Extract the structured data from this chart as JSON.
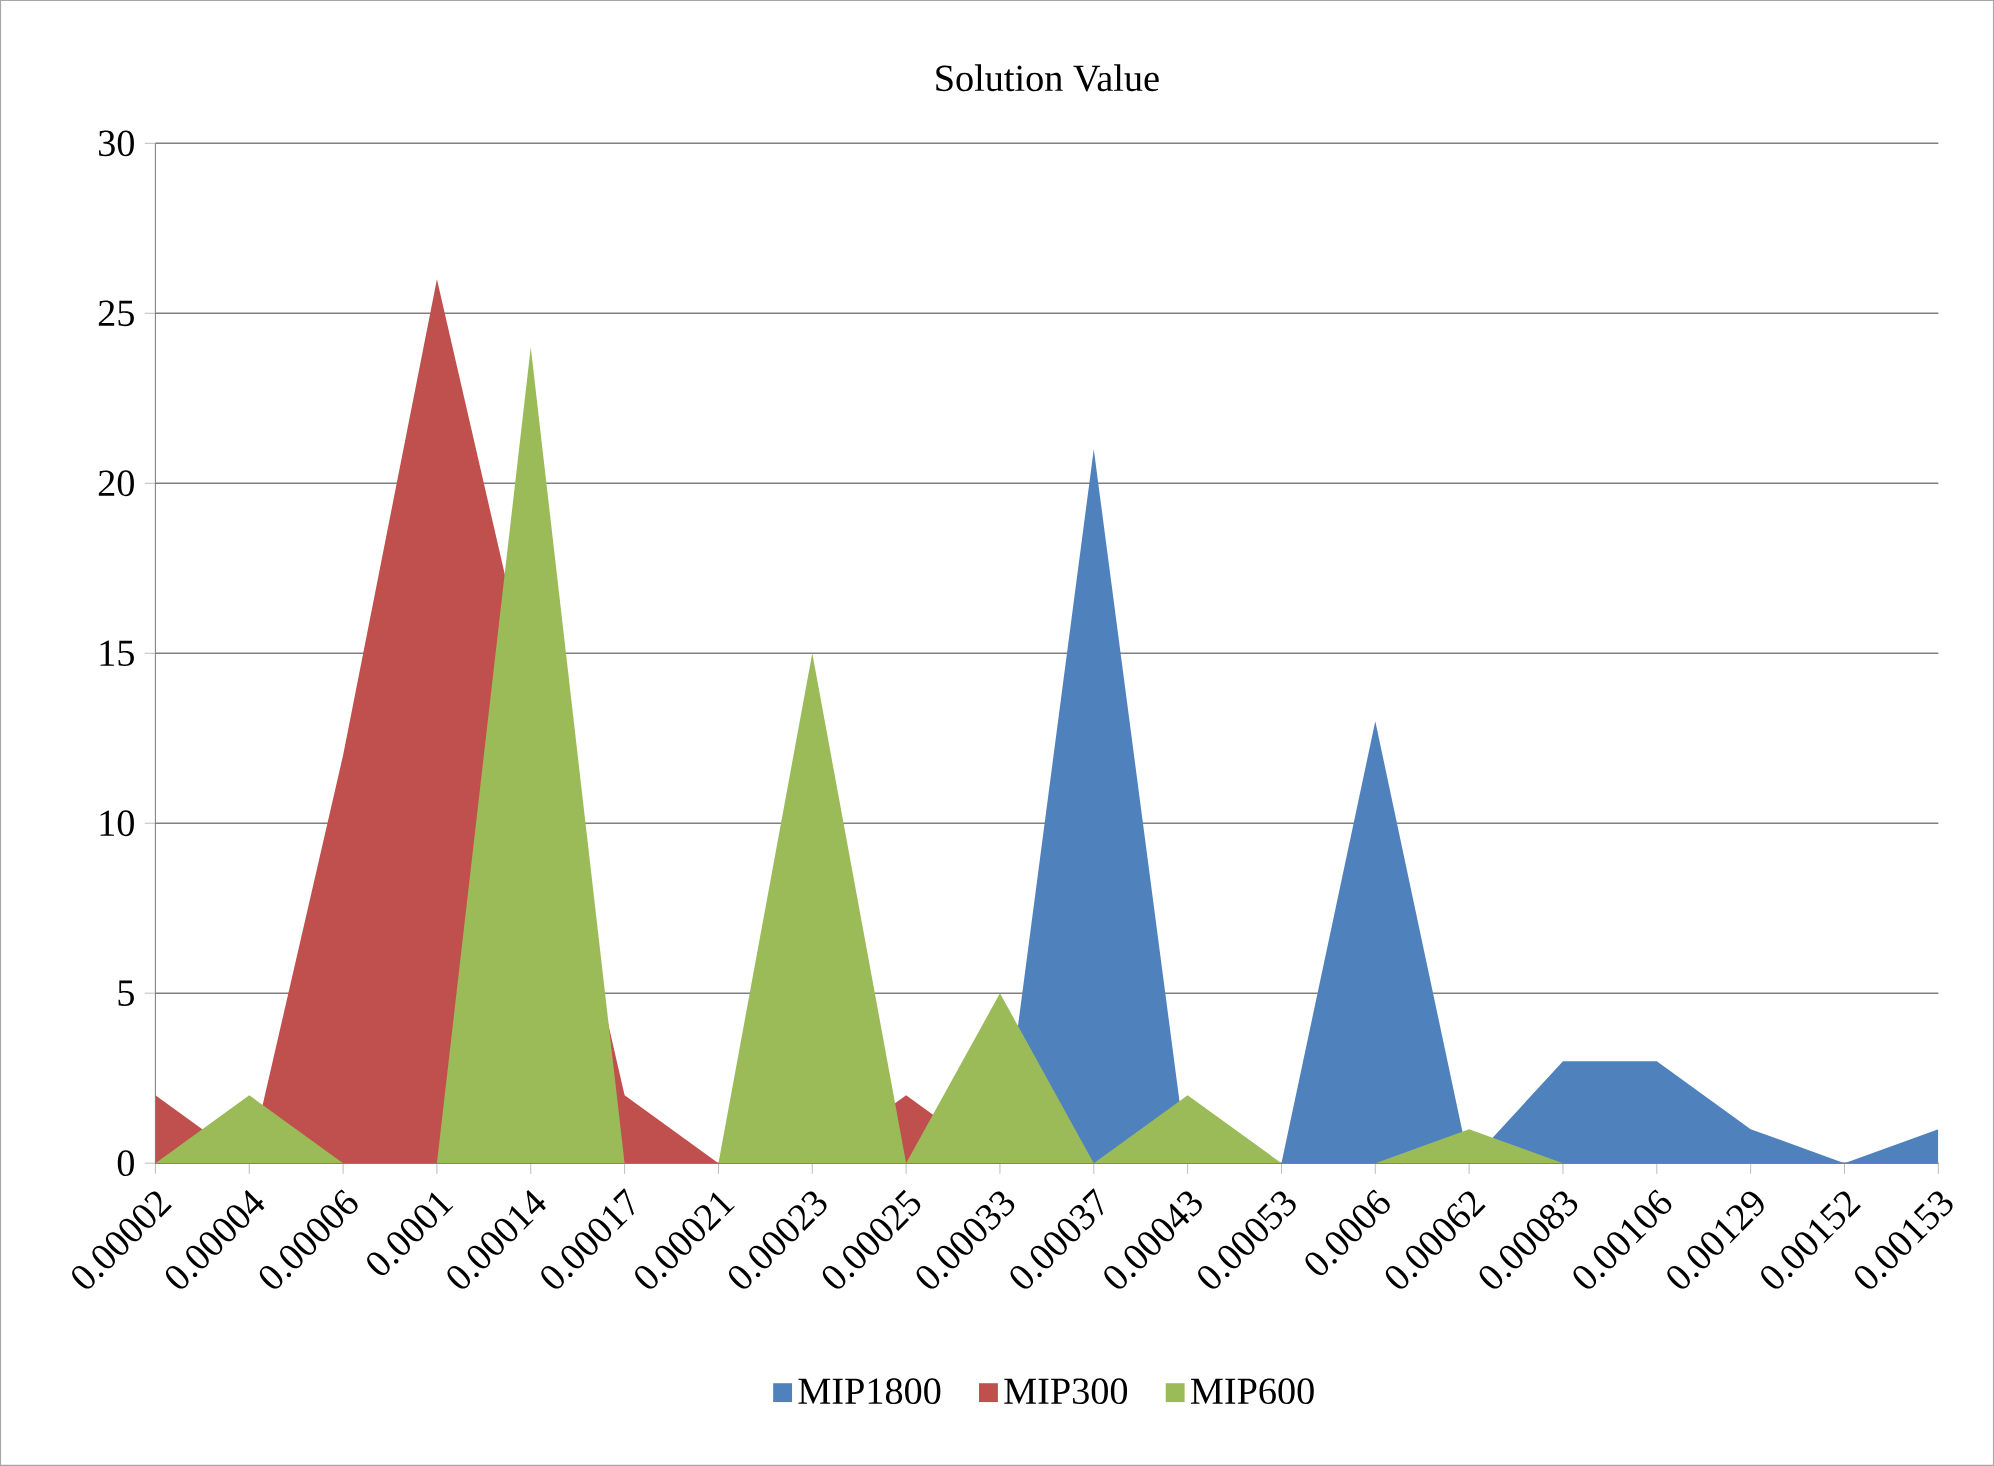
{
  "chart_data": {
    "type": "area",
    "title": "Solution Value",
    "categories": [
      "0.00002",
      "0.00004",
      "0.00006",
      "0.0001",
      "0.00014",
      "0.00017",
      "0.00021",
      "0.00023",
      "0.00025",
      "0.00033",
      "0.00037",
      "0.00043",
      "0.00053",
      "0.0006",
      "0.00062",
      "0.00083",
      "0.00106",
      "0.00129",
      "0.00152",
      "0.00153"
    ],
    "series": [
      {
        "name": "MIP1800",
        "color": "#4f81bd",
        "values": [
          0,
          0,
          0,
          0,
          0,
          0,
          0,
          0,
          0,
          0,
          21,
          0,
          0,
          13,
          0,
          3,
          3,
          1,
          0,
          1
        ]
      },
      {
        "name": "MIP300",
        "color": "#c0504d",
        "values": [
          2,
          0,
          12,
          26,
          null,
          2,
          0,
          0,
          2,
          0,
          0,
          0,
          0,
          0,
          0,
          0,
          0,
          0,
          0,
          0
        ]
      },
      {
        "name": "MIP600",
        "color": "#9bbb59",
        "values": [
          0,
          2,
          0,
          0,
          24,
          0,
          0,
          15,
          0,
          5,
          0,
          2,
          0,
          0,
          1,
          0,
          0,
          0,
          0,
          0
        ]
      }
    ],
    "ylim": [
      0,
      30
    ],
    "yticks": [
      0,
      5,
      10,
      15,
      20,
      25,
      30
    ],
    "grid": "y",
    "legend": "bottom"
  }
}
